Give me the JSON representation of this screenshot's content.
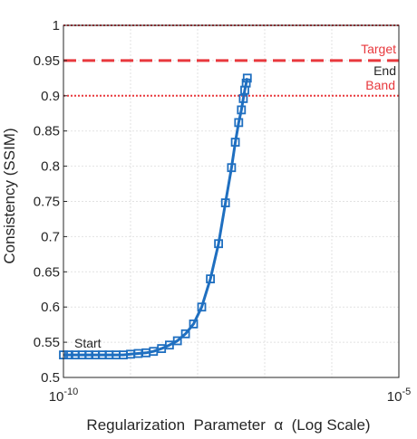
{
  "chart_data": {
    "type": "line",
    "xlabel": "Regularization  Parameter  α  (Log Scale)",
    "ylabel": "Consistency (SSIM)",
    "x_scale": "log",
    "xlim": [
      1e-10,
      1e-05
    ],
    "ylim": [
      0.5,
      1
    ],
    "grid": true,
    "x_ticks": [
      {
        "value": 1e-10,
        "base": "10",
        "exp": "-10"
      },
      {
        "value": 1e-05,
        "base": "10",
        "exp": "-5"
      }
    ],
    "y_ticks": [
      {
        "value": 0.5,
        "label": "0.5"
      },
      {
        "value": 0.55,
        "label": "0.55"
      },
      {
        "value": 0.6,
        "label": "0.6"
      },
      {
        "value": 0.65,
        "label": "0.65"
      },
      {
        "value": 0.7,
        "label": "0.7"
      },
      {
        "value": 0.75,
        "label": "0.75"
      },
      {
        "value": 0.8,
        "label": "0.8"
      },
      {
        "value": 0.85,
        "label": "0.85"
      },
      {
        "value": 0.9,
        "label": "0.9"
      },
      {
        "value": 0.95,
        "label": "0.95"
      },
      {
        "value": 1,
        "label": "1"
      }
    ],
    "series": [
      {
        "color": "#1f6fc0",
        "marker": "square",
        "points": [
          [
            1e-10,
            0.532
          ],
          [
            1.2e-10,
            0.532
          ],
          [
            1.5e-10,
            0.532
          ],
          [
            1.9e-10,
            0.532
          ],
          [
            2.4e-10,
            0.532
          ],
          [
            3e-10,
            0.532
          ],
          [
            3.8e-10,
            0.532
          ],
          [
            4.8e-10,
            0.532
          ],
          [
            6.1e-10,
            0.532
          ],
          [
            7.8e-10,
            0.532
          ],
          [
            1e-09,
            0.533
          ],
          [
            1.3e-09,
            0.534
          ],
          [
            1.7e-09,
            0.535
          ],
          [
            2.2e-09,
            0.537
          ],
          [
            2.9e-09,
            0.541
          ],
          [
            3.8e-09,
            0.546
          ],
          [
            5e-09,
            0.552
          ],
          [
            6.6e-09,
            0.562
          ],
          [
            8.7e-09,
            0.576
          ],
          [
            1.15e-08,
            0.6
          ],
          [
            1.55e-08,
            0.64
          ],
          [
            2.05e-08,
            0.69
          ],
          [
            2.6e-08,
            0.748
          ],
          [
            3.2e-08,
            0.798
          ],
          [
            3.65e-08,
            0.834
          ],
          [
            4.1e-08,
            0.862
          ],
          [
            4.5e-08,
            0.88
          ],
          [
            4.8e-08,
            0.896
          ],
          [
            5.05e-08,
            0.908
          ],
          [
            5.3e-08,
            0.918
          ],
          [
            5.5e-08,
            0.925
          ]
        ]
      }
    ],
    "reference_lines": [
      {
        "y": 0.95,
        "style": "dashed",
        "color": "#e8383d"
      },
      {
        "y": 0.9,
        "style": "dotted",
        "color": "#e8383d"
      },
      {
        "y": 1.0,
        "style": "dotted",
        "color": "#e8383d"
      }
    ],
    "annotations": {
      "start": {
        "text": "Start",
        "x": 1e-10,
        "y": 0.532,
        "color": "#262626"
      },
      "end": {
        "text": "End",
        "x": 5.5e-08,
        "y": 0.925,
        "color": "#262626"
      },
      "target": {
        "text": "Target",
        "color": "#e8383d"
      },
      "band": {
        "text": "Band",
        "color": "#e8383d"
      }
    }
  }
}
